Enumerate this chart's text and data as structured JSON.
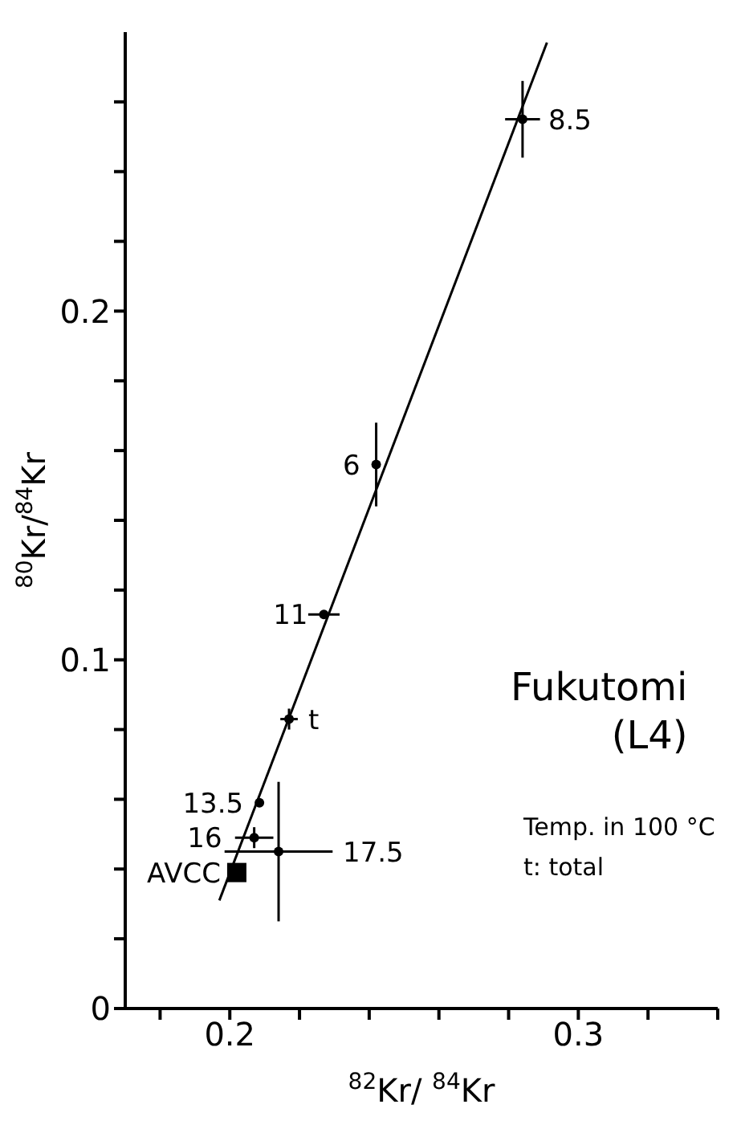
{
  "chart_data": {
    "type": "scatter",
    "title": "Fukutomi\n(L4)",
    "xlabel": "$^{82}$Kr/ $^{84}$Kr",
    "ylabel": "$^{80}$Kr/$^{84}$Kr",
    "xlim": [
      0.17,
      0.34
    ],
    "xticks": [
      {
        "value": 0.18,
        "label": null
      },
      {
        "value": 0.2,
        "label": "0.2"
      },
      {
        "value": 0.22,
        "label": null
      },
      {
        "value": 0.24,
        "label": null
      },
      {
        "value": 0.26,
        "label": null
      },
      {
        "value": 0.28,
        "label": null
      },
      {
        "value": 0.3,
        "label": "0.3"
      },
      {
        "value": 0.32,
        "label": null
      },
      {
        "value": 0.34,
        "label": null
      }
    ],
    "ylim": [
      0,
      0.28
    ],
    "yticks": [
      0,
      {
        "value": 0.02,
        "label": null
      },
      {
        "value": 0.04,
        "label": null
      },
      {
        "value": 0.06,
        "label": null
      },
      {
        "value": 0.08,
        "label": null
      },
      {
        "value": 0.1,
        "label": "0.1"
      },
      {
        "value": 0.12,
        "label": null
      },
      {
        "value": 0.14,
        "label": null
      },
      {
        "value": 0.16,
        "label": null
      },
      {
        "value": 0.18,
        "label": null
      },
      {
        "value": 0.2,
        "label": "0.2"
      },
      {
        "value": 0.22,
        "label": null
      },
      {
        "value": 0.24,
        "label": null
      },
      {
        "value": 0.26,
        "label": null
      }
    ],
    "series": [
      {
        "marker": "circle",
        "color": "#000000",
        "x": [
          0.284,
          0.242,
          0.227,
          0.217,
          0.2085,
          0.207,
          0.214
        ],
        "values": [
          0.255,
          0.156,
          0.113,
          0.083,
          0.059,
          0.049,
          0.045
        ],
        "errors": [
          0.011,
          0.012,
          null,
          0.003,
          null,
          0.003,
          0.02
        ],
        "xerrors": [
          0.005,
          null,
          0.0045,
          0.0025,
          null,
          0.0055,
          0.0155
        ]
      },
      {
        "type": "scatter",
        "marker": "square",
        "color": "#000000",
        "x": [
          0.202
        ],
        "values": [
          0.039
        ]
      },
      {
        "type": "line",
        "marker": "none",
        "line_style": "solid",
        "color": "#000000",
        "x": [
          0.197,
          0.291
        ],
        "values": [
          0.031,
          0.277
        ]
      }
    ],
    "annotations": [
      {
        "text": "8.5",
        "x": 0.284,
        "y": 0.255
      },
      {
        "text": "6",
        "x": 0.242,
        "y": 0.156
      },
      {
        "text": "11",
        "x": 0.227,
        "y": 0.113
      },
      {
        "text": "t",
        "x": 0.217,
        "y": 0.083
      },
      {
        "text": "13.5",
        "x": 0.2085,
        "y": 0.059
      },
      {
        "text": "16",
        "x": 0.207,
        "y": 0.049
      },
      {
        "text": "17.5",
        "x": 0.214,
        "y": 0.045
      },
      {
        "text": "AVCC",
        "x": 0.202,
        "y": 0.039
      },
      "Temp. in 100 °C",
      "t: total"
    ]
  }
}
